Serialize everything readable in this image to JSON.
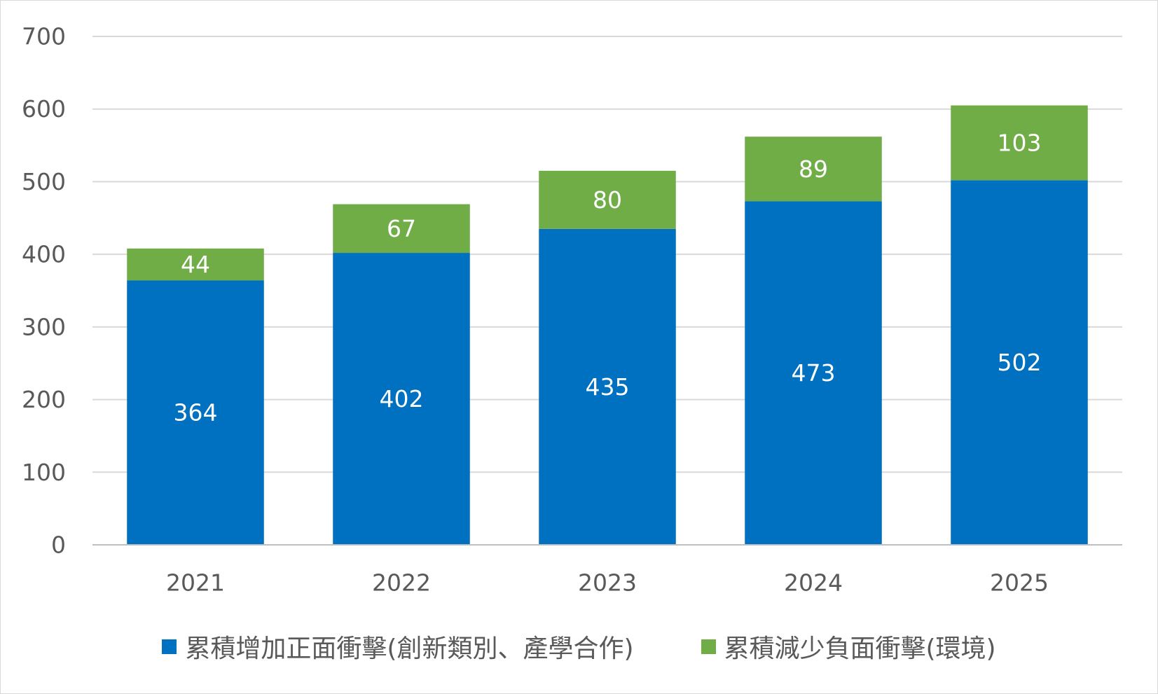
{
  "chart_data": {
    "type": "bar",
    "stacked": true,
    "categories": [
      "2021",
      "2022",
      "2023",
      "2024",
      "2025"
    ],
    "series": [
      {
        "name": "累積增加正面衝擊(創新類別、產學合作)",
        "color": "#0070C0",
        "values": [
          364,
          402,
          435,
          473,
          502
        ]
      },
      {
        "name": "累積減少負面衝擊(環境)",
        "color": "#70AD47",
        "values": [
          44,
          67,
          80,
          89,
          103
        ]
      }
    ],
    "ylim": [
      0,
      700
    ],
    "yticks": [
      "0",
      "100",
      "200",
      "300",
      "400",
      "500",
      "600",
      "700"
    ],
    "grid": true,
    "legend_position": "bottom",
    "data_labels": true,
    "colors": {
      "gridline": "#d9d9d9",
      "axis": "#bfbfbf",
      "tick_text": "#595959",
      "data_label": "#ffffff"
    }
  }
}
